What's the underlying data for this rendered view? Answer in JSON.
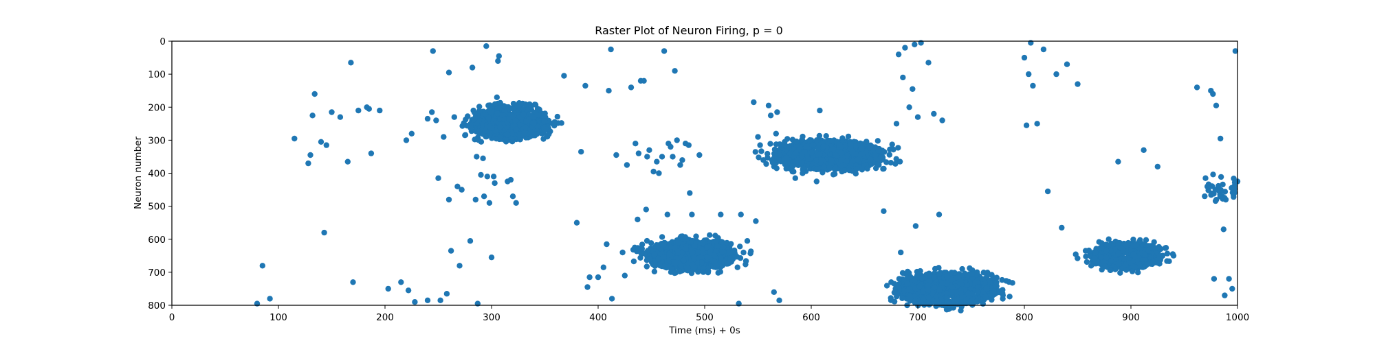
{
  "chart_data": {
    "type": "scatter",
    "title": "Raster Plot of Neuron Firing, p = 0",
    "xlabel": "Time (ms) + 0s",
    "ylabel": "Neuron number",
    "xlim": [
      0,
      1000
    ],
    "ylim": [
      800,
      0
    ],
    "y_inverted": true,
    "grid": false,
    "x_ticks": [
      0,
      100,
      200,
      300,
      400,
      500,
      600,
      700,
      800,
      900,
      1000
    ],
    "y_ticks": [
      0,
      100,
      200,
      300,
      400,
      500,
      600,
      700,
      800
    ],
    "marker_color": "#1f77b4",
    "series": [
      {
        "points": [
          [
            80,
            795
          ],
          [
            85,
            680
          ],
          [
            92,
            780
          ],
          [
            115,
            295
          ],
          [
            128,
            370
          ],
          [
            130,
            345
          ],
          [
            132,
            225
          ],
          [
            134,
            160
          ],
          [
            140,
            305
          ],
          [
            143,
            580
          ],
          [
            145,
            315
          ],
          [
            150,
            215
          ],
          [
            158,
            230
          ],
          [
            165,
            365
          ],
          [
            168,
            65
          ],
          [
            170,
            730
          ],
          [
            175,
            210
          ],
          [
            183,
            200
          ],
          [
            185,
            205
          ],
          [
            187,
            340
          ],
          [
            195,
            210
          ],
          [
            203,
            750
          ],
          [
            215,
            730
          ],
          [
            220,
            300
          ],
          [
            222,
            755
          ],
          [
            225,
            280
          ],
          [
            228,
            790
          ],
          [
            240,
            235
          ],
          [
            240,
            785
          ],
          [
            244,
            215
          ],
          [
            245,
            30
          ],
          [
            248,
            240
          ],
          [
            250,
            415
          ],
          [
            252,
            785
          ],
          [
            255,
            290
          ],
          [
            258,
            765
          ],
          [
            260,
            95
          ],
          [
            260,
            480
          ],
          [
            262,
            635
          ],
          [
            265,
            230
          ],
          [
            268,
            440
          ],
          [
            270,
            680
          ],
          [
            272,
            450
          ],
          [
            275,
            285
          ],
          [
            280,
            605
          ],
          [
            282,
            80
          ],
          [
            283,
            210
          ],
          [
            285,
            480
          ],
          [
            286,
            350
          ],
          [
            287,
            795
          ],
          [
            290,
            405
          ],
          [
            292,
            355
          ],
          [
            293,
            470
          ],
          [
            295,
            15
          ],
          [
            296,
            410
          ],
          [
            298,
            490
          ],
          [
            300,
            655
          ],
          [
            302,
            410
          ],
          [
            303,
            430
          ],
          [
            305,
            170
          ],
          [
            306,
            60
          ],
          [
            307,
            45
          ],
          [
            315,
            425
          ],
          [
            318,
            420
          ],
          [
            320,
            470
          ],
          [
            323,
            490
          ],
          [
            345,
            215
          ],
          [
            368,
            105
          ],
          [
            380,
            550
          ],
          [
            384,
            335
          ],
          [
            388,
            135
          ],
          [
            390,
            745
          ],
          [
            392,
            715
          ],
          [
            400,
            715
          ],
          [
            405,
            685
          ],
          [
            408,
            615
          ],
          [
            410,
            150
          ],
          [
            412,
            25
          ],
          [
            413,
            780
          ],
          [
            417,
            345
          ],
          [
            423,
            640
          ],
          [
            425,
            710
          ],
          [
            427,
            375
          ],
          [
            431,
            140
          ],
          [
            435,
            310
          ],
          [
            437,
            540
          ],
          [
            438,
            340
          ],
          [
            440,
            120
          ],
          [
            443,
            120
          ],
          [
            445,
            510
          ],
          [
            446,
            350
          ],
          [
            448,
            330
          ],
          [
            452,
            395
          ],
          [
            455,
            365
          ],
          [
            457,
            400
          ],
          [
            460,
            350
          ],
          [
            462,
            30
          ],
          [
            465,
            525
          ],
          [
            466,
            310
          ],
          [
            468,
            320
          ],
          [
            470,
            350
          ],
          [
            472,
            90
          ],
          [
            474,
            300
          ],
          [
            477,
            375
          ],
          [
            479,
            360
          ],
          [
            482,
            310
          ],
          [
            485,
            315
          ],
          [
            486,
            460
          ],
          [
            488,
            525
          ],
          [
            495,
            345
          ],
          [
            515,
            525
          ],
          [
            532,
            795
          ],
          [
            534,
            525
          ],
          [
            540,
            605
          ],
          [
            546,
            185
          ],
          [
            548,
            545
          ],
          [
            550,
            290
          ],
          [
            552,
            315
          ],
          [
            555,
            360
          ],
          [
            560,
            195
          ],
          [
            562,
            225
          ],
          [
            565,
            760
          ],
          [
            567,
            280
          ],
          [
            568,
            215
          ],
          [
            570,
            785
          ],
          [
            575,
            305
          ],
          [
            580,
            360
          ],
          [
            585,
            415
          ],
          [
            588,
            335
          ],
          [
            590,
            305
          ],
          [
            600,
            300
          ],
          [
            605,
            425
          ],
          [
            608,
            210
          ],
          [
            668,
            515
          ],
          [
            675,
            730
          ],
          [
            678,
            735
          ],
          [
            680,
            250
          ],
          [
            682,
            40
          ],
          [
            684,
            640
          ],
          [
            686,
            110
          ],
          [
            688,
            20
          ],
          [
            690,
            800
          ],
          [
            692,
            200
          ],
          [
            695,
            145
          ],
          [
            697,
            10
          ],
          [
            698,
            560
          ],
          [
            700,
            230
          ],
          [
            703,
            5
          ],
          [
            710,
            65
          ],
          [
            715,
            220
          ],
          [
            720,
            525
          ],
          [
            723,
            240
          ],
          [
            800,
            50
          ],
          [
            802,
            255
          ],
          [
            804,
            100
          ],
          [
            806,
            5
          ],
          [
            808,
            135
          ],
          [
            812,
            250
          ],
          [
            818,
            25
          ],
          [
            822,
            455
          ],
          [
            830,
            100
          ],
          [
            835,
            565
          ],
          [
            840,
            70
          ],
          [
            850,
            130
          ],
          [
            888,
            365
          ],
          [
            912,
            330
          ],
          [
            925,
            380
          ],
          [
            962,
            140
          ],
          [
            970,
            415
          ],
          [
            975,
            150
          ],
          [
            977,
            160
          ],
          [
            978,
            720
          ],
          [
            980,
            195
          ],
          [
            984,
            295
          ],
          [
            987,
            570
          ],
          [
            988,
            770
          ],
          [
            989,
            480
          ],
          [
            992,
            720
          ],
          [
            995,
            750
          ],
          [
            996,
            460
          ],
          [
            998,
            30
          ],
          [
            1000,
            425
          ]
        ],
        "clusters": [
          {
            "t_range": [
              280,
              355
            ],
            "neuron_range": [
              200,
              300
            ],
            "density": "dense"
          },
          {
            "t_range": [
              565,
              670
            ],
            "neuron_range": [
              300,
              390
            ],
            "density": "dense"
          },
          {
            "t_range": [
              445,
              530
            ],
            "neuron_range": [
              600,
              695
            ],
            "density": "dense"
          },
          {
            "t_range": [
              680,
              775
            ],
            "neuron_range": [
              700,
              800
            ],
            "density": "dense"
          },
          {
            "t_range": [
              860,
              930
            ],
            "neuron_range": [
              610,
              690
            ],
            "density": "dense"
          },
          {
            "t_range": [
              965,
              1000
            ],
            "neuron_range": [
              410,
              490
            ],
            "density": "sparse"
          }
        ]
      }
    ]
  }
}
